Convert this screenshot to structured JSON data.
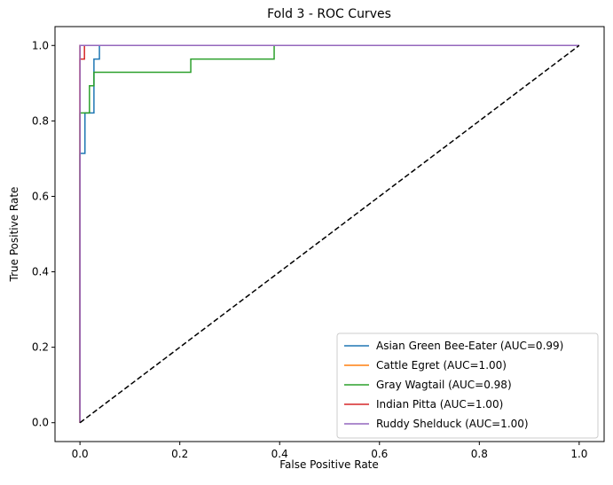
{
  "chart_data": {
    "type": "line",
    "title": "Fold 3 - ROC Curves",
    "xlabel": "False Positive Rate",
    "ylabel": "True Positive Rate",
    "xlim": [
      -0.05,
      1.05
    ],
    "ylim": [
      -0.05,
      1.05
    ],
    "xticks": [
      "0.0",
      "0.2",
      "0.4",
      "0.6",
      "0.8",
      "1.0"
    ],
    "yticks": [
      "0.0",
      "0.2",
      "0.4",
      "0.6",
      "0.8",
      "1.0"
    ],
    "grid": false,
    "legend_position": "lower-right",
    "series": [
      {
        "name": "Asian Green Bee-Eater (AUC=0.99)",
        "color": "#1f77b4",
        "x": [
          0.0,
          0.0,
          0.01,
          0.01,
          0.028,
          0.028,
          0.039,
          0.039,
          1.0
        ],
        "y": [
          0.0,
          0.714,
          0.714,
          0.821,
          0.821,
          0.964,
          0.964,
          1.0,
          1.0
        ]
      },
      {
        "name": "Cattle Egret (AUC=1.00)",
        "color": "#ff7f0e",
        "x": [
          0.0,
          0.0,
          1.0
        ],
        "y": [
          0.0,
          1.0,
          1.0
        ]
      },
      {
        "name": "Gray Wagtail (AUC=0.98)",
        "color": "#2ca02c",
        "x": [
          0.0,
          0.0,
          0.019,
          0.019,
          0.028,
          0.028,
          0.222,
          0.222,
          0.389,
          0.389,
          1.0
        ],
        "y": [
          0.0,
          0.821,
          0.821,
          0.893,
          0.893,
          0.929,
          0.929,
          0.964,
          0.964,
          1.0,
          1.0
        ]
      },
      {
        "name": "Indian Pitta (AUC=1.00)",
        "color": "#d62728",
        "x": [
          0.0,
          0.0,
          0.009,
          0.009,
          1.0
        ],
        "y": [
          0.0,
          1.0,
          1.0,
          1.0,
          1.0
        ]
      },
      {
        "name": "Ruddy Shelduck (AUC=1.00)",
        "color": "#9467bd",
        "x": [
          0.0,
          0.0,
          1.0
        ],
        "y": [
          0.0,
          1.0,
          1.0
        ]
      }
    ],
    "extra_lines": [
      {
        "color": "#d62728",
        "x": [
          0.0,
          0.0,
          0.009,
          0.009,
          1.0
        ],
        "y": [
          0.0,
          0.964,
          0.964,
          1.0,
          1.0
        ]
      }
    ],
    "reference_line": {
      "x": [
        0.0,
        1.0
      ],
      "y": [
        0.0,
        1.0
      ],
      "color": "#000000",
      "style": "dashed"
    }
  }
}
